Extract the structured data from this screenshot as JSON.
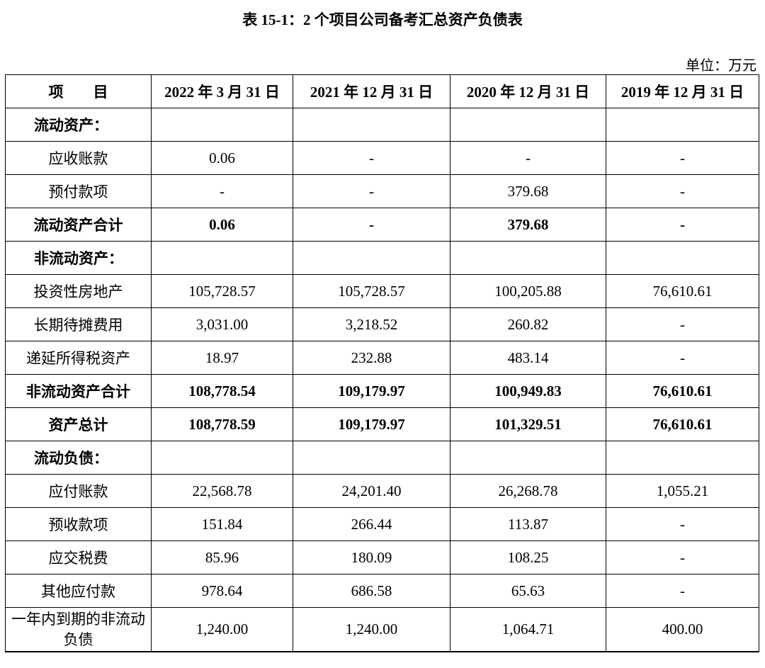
{
  "title": "表 15-1：2 个项目公司备考汇总资产负债表",
  "unit": "单位：万元",
  "table": {
    "headers": [
      "项　　目",
      "2022 年 3 月 31 日",
      "2021 年 12 月 31 日",
      "2020 年 12 月 31 日",
      "2019 年 12 月 31 日"
    ],
    "rows": [
      {
        "label": "流动资产：",
        "values": [
          "",
          "",
          "",
          ""
        ],
        "type": "section"
      },
      {
        "label": "应收账款",
        "values": [
          "0.06",
          "-",
          "-",
          "-"
        ],
        "type": "normal"
      },
      {
        "label": "预付款项",
        "values": [
          "-",
          "-",
          "379.68",
          "-"
        ],
        "type": "normal"
      },
      {
        "label": "流动资产合计",
        "values": [
          "0.06",
          "-",
          "379.68",
          "-"
        ],
        "type": "bold"
      },
      {
        "label": "非流动资产：",
        "values": [
          "",
          "",
          "",
          ""
        ],
        "type": "section"
      },
      {
        "label": "投资性房地产",
        "values": [
          "105,728.57",
          "105,728.57",
          "100,205.88",
          "76,610.61"
        ],
        "type": "normal"
      },
      {
        "label": "长期待摊费用",
        "values": [
          "3,031.00",
          "3,218.52",
          "260.82",
          "-"
        ],
        "type": "normal"
      },
      {
        "label": "递延所得税资产",
        "values": [
          "18.97",
          "232.88",
          "483.14",
          "-"
        ],
        "type": "normal"
      },
      {
        "label": "非流动资产合计",
        "values": [
          "108,778.54",
          "109,179.97",
          "100,949.83",
          "76,610.61"
        ],
        "type": "bold"
      },
      {
        "label": "资产总计",
        "values": [
          "108,778.59",
          "109,179.97",
          "101,329.51",
          "76,610.61"
        ],
        "type": "bold"
      },
      {
        "label": "流动负债：",
        "values": [
          "",
          "",
          "",
          ""
        ],
        "type": "section"
      },
      {
        "label": "应付账款",
        "values": [
          "22,568.78",
          "24,201.40",
          "26,268.78",
          "1,055.21"
        ],
        "type": "normal"
      },
      {
        "label": "预收款项",
        "values": [
          "151.84",
          "266.44",
          "113.87",
          "-"
        ],
        "type": "normal"
      },
      {
        "label": "应交税费",
        "values": [
          "85.96",
          "180.09",
          "108.25",
          "-"
        ],
        "type": "normal"
      },
      {
        "label": "其他应付款",
        "values": [
          "978.64",
          "686.58",
          "65.63",
          "-"
        ],
        "type": "normal"
      },
      {
        "label": "一年内到期的非流动负债",
        "values": [
          "1,240.00",
          "1,240.00",
          "1,064.71",
          "400.00"
        ],
        "type": "tall"
      }
    ]
  }
}
